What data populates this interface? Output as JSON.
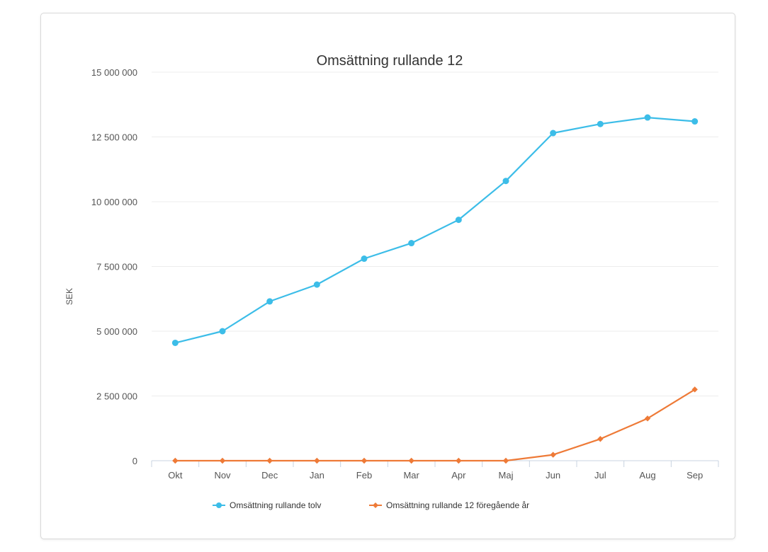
{
  "chart_data": {
    "type": "line",
    "title": "Omsättning rullande 12",
    "xlabel": "",
    "ylabel": "SEK",
    "categories": [
      "Okt",
      "Nov",
      "Dec",
      "Jan",
      "Feb",
      "Mar",
      "Apr",
      "Maj",
      "Jun",
      "Jul",
      "Aug",
      "Sep"
    ],
    "ylim": [
      0,
      15000000
    ],
    "yticks": [
      0,
      2500000,
      5000000,
      7500000,
      10000000,
      12500000,
      15000000
    ],
    "ytick_labels": [
      "0",
      "2 500 000",
      "5 000 000",
      "7 500 000",
      "10 000 000",
      "12 500 000",
      "15 000 000"
    ],
    "grid": true,
    "legend_position": "bottom",
    "series": [
      {
        "name": "Omsättning rullande tolv",
        "color": "#3cbde8",
        "marker": "circle",
        "values": [
          4550000,
          5000000,
          6150000,
          6800000,
          7800000,
          8400000,
          9300000,
          10800000,
          12650000,
          13000000,
          13250000,
          13100000
        ]
      },
      {
        "name": "Omsättning rullande 12 föregående år",
        "color": "#ee7a37",
        "marker": "diamond",
        "values": [
          0,
          0,
          0,
          0,
          0,
          0,
          0,
          0,
          230000,
          840000,
          1630000,
          2750000
        ]
      }
    ]
  }
}
